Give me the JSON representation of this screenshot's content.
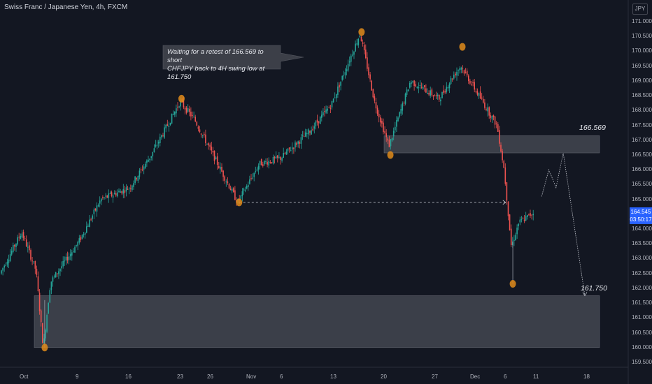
{
  "header": {
    "title": "Swiss Franc / Japanese Yen, 4h, FXCM",
    "currency": "JPY"
  },
  "price_tag": {
    "price": "164.545",
    "countdown": "03:50:17"
  },
  "annotation": {
    "text_line1": "Waiting for a retest of 166.569 to short",
    "text_line2": "CHFJPY back to 4H swing low at 161.750"
  },
  "levels": {
    "upper_label": "166.569",
    "lower_label": "161.750"
  },
  "colors": {
    "background": "#131722",
    "up": "#26a69a",
    "down": "#ef5350",
    "marker": "#e08b1a",
    "zone": "#4a4d57"
  },
  "chart_data": {
    "type": "candlestick",
    "symbol": "CHFJPY",
    "timeframe": "4h",
    "y_ticks": [
      "171.000",
      "170.500",
      "170.000",
      "169.500",
      "169.000",
      "168.500",
      "168.000",
      "167.500",
      "167.000",
      "166.500",
      "166.000",
      "165.500",
      "165.000",
      "164.500",
      "164.000",
      "163.500",
      "163.000",
      "162.500",
      "162.000",
      "161.500",
      "161.000",
      "160.500",
      "160.000",
      "159.500"
    ],
    "x_ticks": [
      "Oct",
      "9",
      "16",
      "23",
      "26",
      "Nov",
      "6",
      "13",
      "20",
      "27",
      "Dec",
      "6",
      "11",
      "18"
    ],
    "ylim": [
      159.3,
      171.4
    ],
    "price_path": [
      {
        "date": "Sep 28",
        "price": 162.5
      },
      {
        "date": "Oct 1",
        "price": 163.9
      },
      {
        "date": "Oct 3",
        "price": 162.6
      },
      {
        "date": "Oct 4",
        "price": 160.0
      },
      {
        "date": "Oct 5",
        "price": 162.2
      },
      {
        "date": "Oct 9",
        "price": 163.6
      },
      {
        "date": "Oct 12",
        "price": 165.0
      },
      {
        "date": "Oct 16",
        "price": 165.4
      },
      {
        "date": "Oct 19",
        "price": 166.5
      },
      {
        "date": "Oct 23",
        "price": 168.3
      },
      {
        "date": "Oct 25",
        "price": 167.7
      },
      {
        "date": "Oct 28",
        "price": 166.3
      },
      {
        "date": "Oct 31",
        "price": 164.9
      },
      {
        "date": "Nov 3",
        "price": 166.2
      },
      {
        "date": "Nov 6",
        "price": 166.4
      },
      {
        "date": "Nov 10",
        "price": 167.3
      },
      {
        "date": "Nov 13",
        "price": 168.2
      },
      {
        "date": "Nov 17",
        "price": 170.6
      },
      {
        "date": "Nov 19",
        "price": 168.3
      },
      {
        "date": "Nov 21",
        "price": 166.8
      },
      {
        "date": "Nov 24",
        "price": 169.0
      },
      {
        "date": "Nov 28",
        "price": 168.4
      },
      {
        "date": "Nov 30",
        "price": 169.2
      },
      {
        "date": "Dec 1",
        "price": 169.5
      },
      {
        "date": "Dec 4",
        "price": 168.3
      },
      {
        "date": "Dec 6",
        "price": 167.5
      },
      {
        "date": "Dec 7",
        "price": 166.0
      },
      {
        "date": "Dec 8",
        "price": 163.4
      },
      {
        "date": "Dec 9",
        "price": 164.2
      },
      {
        "date": "Dec 11",
        "price": 164.545
      }
    ],
    "swing_points": [
      {
        "date": "Oct 4",
        "price": 160.0
      },
      {
        "date": "Oct 23",
        "price": 168.4
      },
      {
        "date": "Oct 31",
        "price": 164.9
      },
      {
        "date": "Nov 17",
        "price": 170.65
      },
      {
        "date": "Nov 21",
        "price": 166.5
      },
      {
        "date": "Dec 1",
        "price": 170.15
      },
      {
        "date": "Dec 8",
        "price": 162.15
      }
    ],
    "zones": [
      {
        "low": 166.569,
        "high": 167.15
      },
      {
        "low": 160.0,
        "high": 161.75
      }
    ],
    "projected_path": [
      {
        "date": "Dec 12",
        "price": 165.1
      },
      {
        "date": "Dec 13",
        "price": 166.0
      },
      {
        "date": "Dec 14",
        "price": 165.4
      },
      {
        "date": "Dec 15",
        "price": 166.569
      },
      {
        "date": "Dec 18",
        "price": 161.75
      }
    ],
    "horizontal_ray": {
      "price": 164.9,
      "from": "Oct 31",
      "to": "Dec 7"
    },
    "last_price": 164.545
  }
}
